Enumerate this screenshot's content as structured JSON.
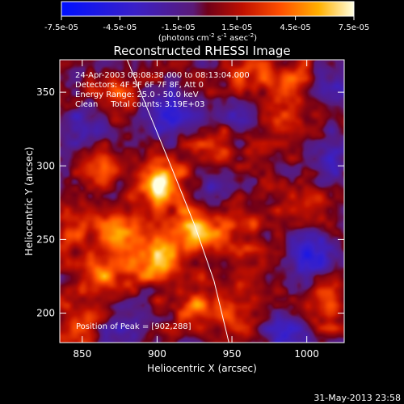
{
  "chart_data": {
    "type": "heatmap",
    "title": "Reconstructed RHESSI Image",
    "xlabel": "Heliocentric X (arcsec)",
    "ylabel": "Heliocentric Y (arcsec)",
    "xlim": [
      835,
      1025
    ],
    "ylim": [
      180,
      372
    ],
    "x_ticks": [
      850,
      900,
      950,
      1000
    ],
    "y_ticks": [
      200,
      250,
      300,
      350
    ],
    "colorbar": {
      "range": [
        -7.5e-05,
        7.5e-05
      ],
      "tick_labels": [
        "-7.5e-05",
        "-4.5e-05",
        "-1.5e-05",
        "1.5e-05",
        "4.5e-05",
        "7.5e-05"
      ],
      "units_text": "(photons cm",
      "units_exp1": "-2",
      "units_mid": " s",
      "units_exp2": "-1",
      "units_end": " asec",
      "units_exp3": "-2",
      "units_close": ")"
    },
    "annotations": [
      "24-Apr-2003 08:08:38.000 to 08:13:04.000",
      "Detectors: 4F 5F 6F 7F 8F, Att 0",
      "Energy Range: 25.0 - 50.0 keV",
      "Clean     Total counts: 3.19E+03"
    ],
    "peak_text": "Position of Peak = [902,288]",
    "peak": [
      902,
      288
    ],
    "limb_curve": [
      [
        880,
        372
      ],
      [
        895,
        335
      ],
      [
        910,
        298
      ],
      [
        925,
        260
      ],
      [
        938,
        222
      ],
      [
        948,
        180
      ]
    ],
    "sources": [
      {
        "x": 902,
        "y": 288,
        "amp": 7.5e-05
      },
      {
        "x": 925,
        "y": 255,
        "amp": 6.5e-05
      },
      {
        "x": 880,
        "y": 255,
        "amp": 4.5e-05
      },
      {
        "x": 865,
        "y": 228,
        "amp": 4.5e-05
      },
      {
        "x": 900,
        "y": 235,
        "amp": 5e-05
      },
      {
        "x": 925,
        "y": 205,
        "amp": 4e-05
      },
      {
        "x": 955,
        "y": 262,
        "amp": 3e-05
      },
      {
        "x": 940,
        "y": 312,
        "amp": 3e-05
      },
      {
        "x": 860,
        "y": 300,
        "amp": 3e-05
      },
      {
        "x": 975,
        "y": 330,
        "amp": 2.5e-05
      },
      {
        "x": 990,
        "y": 355,
        "amp": 3.5e-05
      },
      {
        "x": 1010,
        "y": 205,
        "amp": 3e-05
      },
      {
        "x": 955,
        "y": 195,
        "amp": 3e-05
      },
      {
        "x": 845,
        "y": 190,
        "amp": 3.5e-05
      },
      {
        "x": 870,
        "y": 350,
        "amp": 2.5e-05
      },
      {
        "x": 1000,
        "y": 275,
        "amp": 2e-05
      },
      {
        "x": 960,
        "y": 360,
        "amp": 3e-05
      },
      {
        "x": 850,
        "y": 260,
        "amp": 3e-05
      },
      {
        "x": 960,
        "y": 230,
        "amp": 2e-05
      }
    ],
    "negatives": [
      {
        "x": 910,
        "y": 335,
        "amp": -4e-05
      },
      {
        "x": 1005,
        "y": 240,
        "amp": -4.5e-05
      },
      {
        "x": 960,
        "y": 335,
        "amp": -4e-05
      },
      {
        "x": 850,
        "y": 325,
        "amp": -3e-05
      },
      {
        "x": 1015,
        "y": 305,
        "amp": -3e-05
      },
      {
        "x": 880,
        "y": 190,
        "amp": -3e-05
      },
      {
        "x": 985,
        "y": 190,
        "amp": -3.5e-05
      },
      {
        "x": 940,
        "y": 285,
        "amp": -2e-05
      },
      {
        "x": 1020,
        "y": 355,
        "amp": -3e-05
      }
    ]
  },
  "footer_date": "31-May-2013 23:58"
}
